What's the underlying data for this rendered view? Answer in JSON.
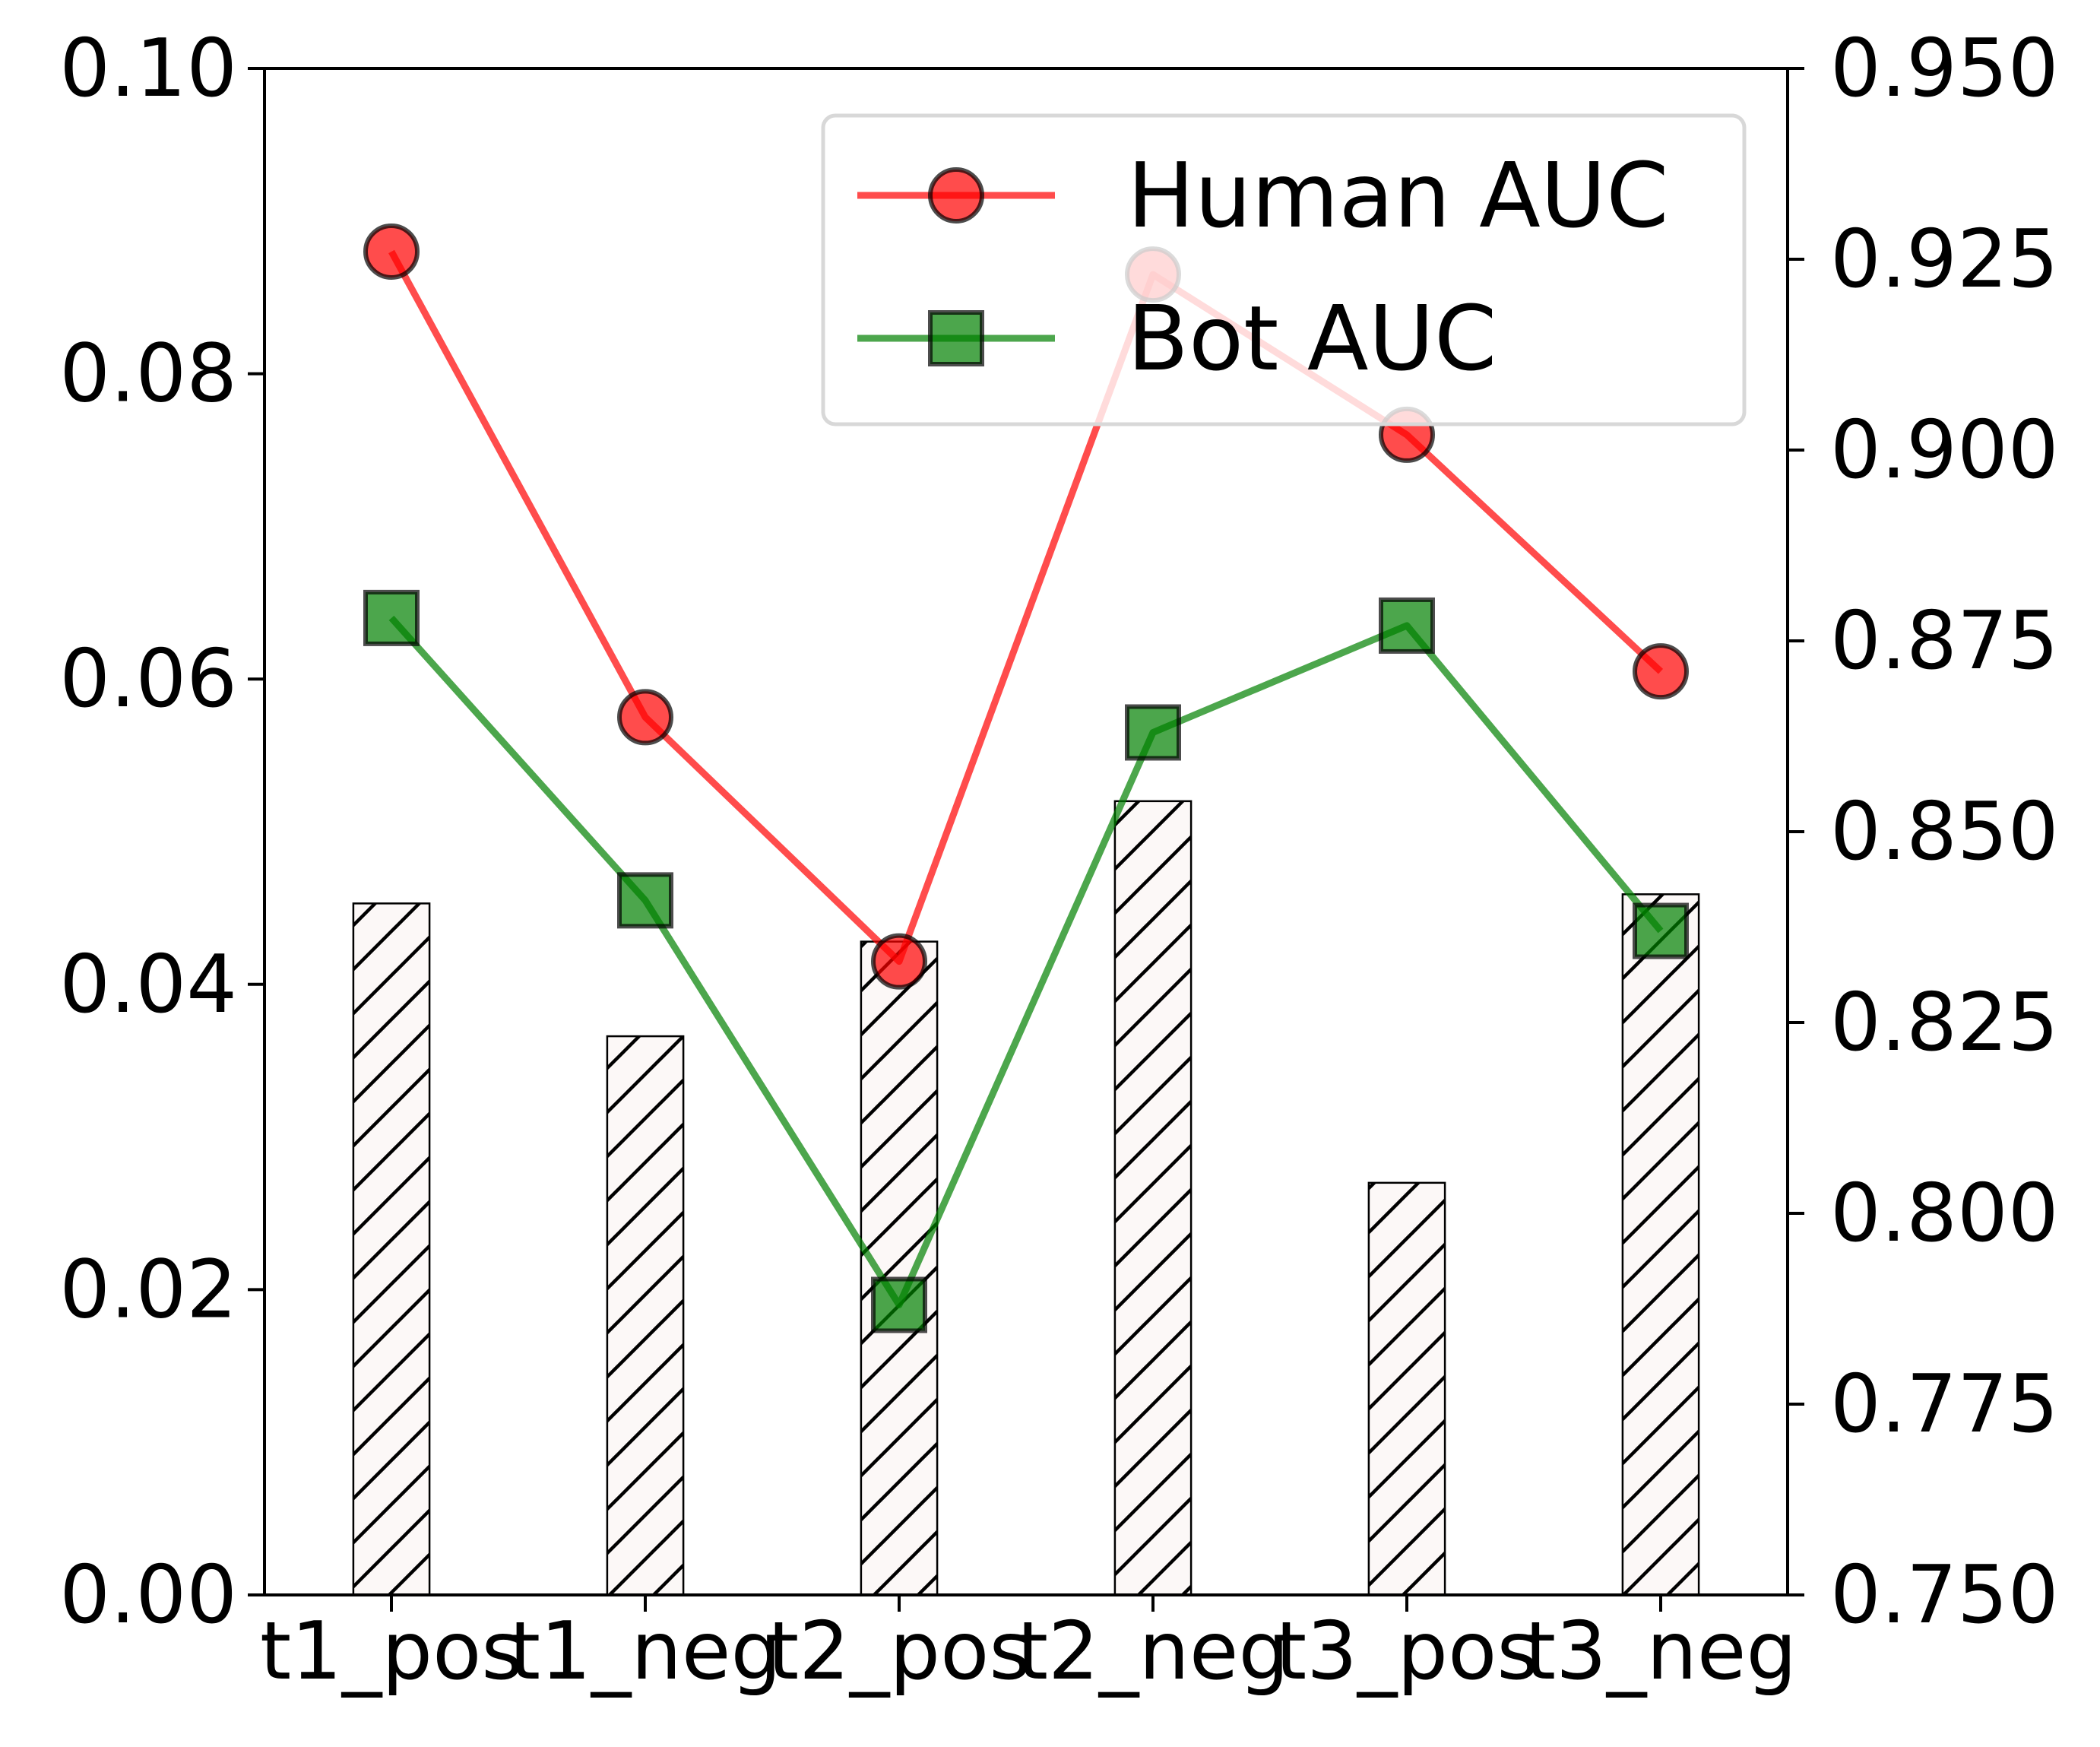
{
  "chart_data": {
    "type": "bar",
    "categories": [
      "t1_pos",
      "t1_neg",
      "t2_pos",
      "t2_neg",
      "t3_pos",
      "t3_neg"
    ],
    "bars": {
      "values": [
        0.0453,
        0.0366,
        0.0428,
        0.052,
        0.027,
        0.0459
      ],
      "axis": "left",
      "fill": "#fcf8f7",
      "hatch": "diagonal"
    },
    "series": [
      {
        "name": "Human AUC",
        "type": "line",
        "axis": "right",
        "marker": "circle",
        "color": "#ff0000",
        "values": [
          0.926,
          0.865,
          0.833,
          0.923,
          0.902,
          0.871
        ]
      },
      {
        "name": "Bot AUC",
        "type": "line",
        "axis": "right",
        "marker": "square",
        "color": "#008000",
        "values": [
          0.878,
          0.841,
          0.788,
          0.863,
          0.877,
          0.837
        ]
      }
    ],
    "left_axis": {
      "ylim": [
        0.0,
        0.1
      ],
      "ticks": [
        "0.00",
        "0.02",
        "0.04",
        "0.06",
        "0.08",
        "0.10"
      ]
    },
    "right_axis": {
      "ylim": [
        0.75,
        0.95
      ],
      "ticks": [
        "0.750",
        "0.775",
        "0.800",
        "0.825",
        "0.850",
        "0.875",
        "0.900",
        "0.925",
        "0.950"
      ]
    },
    "legend": "top-right",
    "grid": false
  }
}
